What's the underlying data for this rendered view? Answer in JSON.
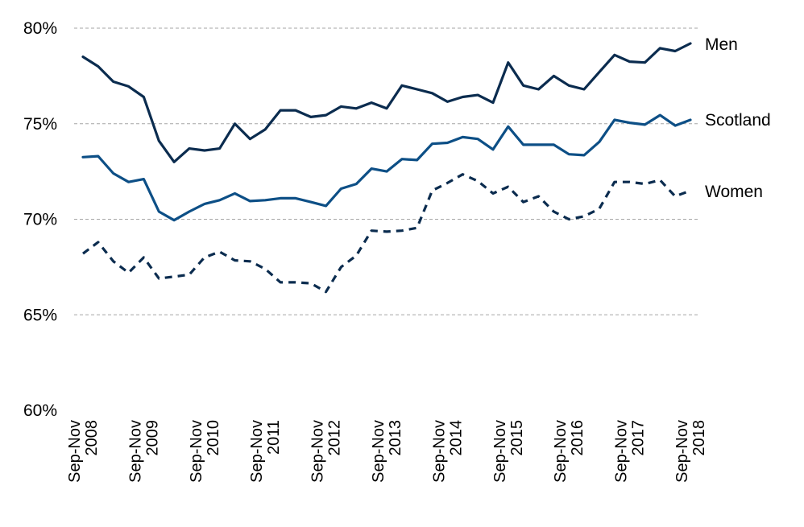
{
  "chart_data": {
    "type": "line",
    "ylim": [
      60,
      80
    ],
    "y_ticks": [
      60,
      65,
      70,
      75,
      80
    ],
    "y_tick_labels": [
      "60%",
      "65%",
      "70%",
      "75%",
      "80%"
    ],
    "grid": "horizontal dashed",
    "x_tick_labels": [
      [
        "Sep-Nov",
        "2008"
      ],
      [
        "Sep-Nov",
        "2009"
      ],
      [
        "Sep-Nov",
        "2010"
      ],
      [
        "Sep-Nov",
        "2011"
      ],
      [
        "Sep-Nov",
        "2012"
      ],
      [
        "Sep-Nov",
        "2013"
      ],
      [
        "Sep-Nov",
        "2014"
      ],
      [
        "Sep-Nov",
        "2015"
      ],
      [
        "Sep-Nov",
        "2016"
      ],
      [
        "Sep-Nov",
        "2017"
      ],
      [
        "Sep-Nov",
        "2018"
      ]
    ],
    "x_tick_positions": [
      0,
      4,
      8,
      12,
      16,
      20,
      24,
      28,
      32,
      36,
      40
    ],
    "series": [
      {
        "name": "Men",
        "color": "#0b2c4f",
        "style": "solid",
        "values": [
          78.5,
          78.0,
          77.2,
          76.95,
          76.4,
          74.1,
          73.0,
          73.7,
          73.6,
          73.7,
          75.0,
          74.2,
          74.7,
          75.7,
          75.7,
          75.35,
          75.45,
          75.9,
          75.8,
          76.1,
          75.8,
          77.0,
          76.8,
          76.6,
          76.15,
          76.4,
          76.5,
          76.1,
          78.2,
          77.0,
          76.8,
          77.5,
          77.0,
          76.8,
          77.7,
          78.6,
          78.25,
          78.2,
          78.95,
          78.8,
          79.2
        ]
      },
      {
        "name": "Scotland",
        "color": "#0d4f86",
        "style": "solid",
        "values": [
          73.25,
          73.3,
          72.4,
          71.95,
          72.1,
          70.4,
          69.95,
          70.4,
          70.8,
          71.0,
          71.35,
          70.95,
          71.0,
          71.1,
          71.1,
          70.9,
          70.7,
          71.6,
          71.85,
          72.65,
          72.5,
          73.15,
          73.1,
          73.95,
          74.0,
          74.3,
          74.2,
          73.65,
          74.85,
          73.9,
          73.9,
          73.9,
          73.4,
          73.35,
          74.05,
          75.2,
          75.05,
          74.95,
          75.45,
          74.9,
          75.2
        ]
      },
      {
        "name": "Women",
        "color": "#0b2c4f",
        "style": "dashed",
        "values": [
          68.2,
          68.8,
          67.8,
          67.2,
          68.0,
          66.9,
          67.0,
          67.1,
          68.0,
          68.3,
          67.85,
          67.8,
          67.4,
          66.7,
          66.7,
          66.65,
          66.2,
          67.5,
          68.1,
          69.4,
          69.35,
          69.4,
          69.55,
          71.5,
          71.9,
          72.35,
          72.0,
          71.35,
          71.7,
          70.9,
          71.2,
          70.4,
          70.0,
          70.15,
          70.55,
          71.95,
          71.95,
          71.85,
          72.05,
          71.2,
          71.5
        ]
      }
    ]
  }
}
